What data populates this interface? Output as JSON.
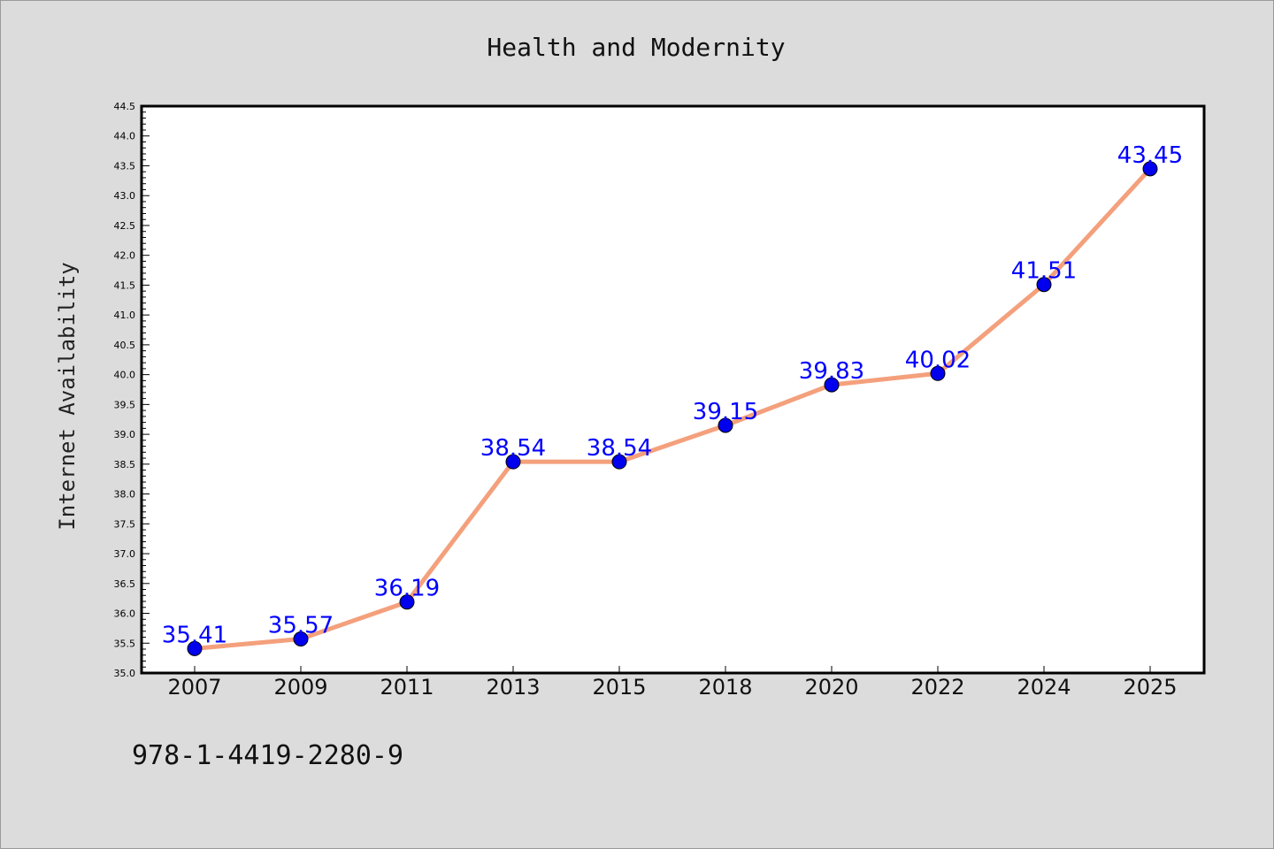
{
  "chart_data": {
    "type": "line",
    "title": "Health and Modernity",
    "xlabel": "",
    "ylabel": "Internet Availability",
    "categories": [
      "2007",
      "2009",
      "2011",
      "2013",
      "2015",
      "2018",
      "2020",
      "2022",
      "2024",
      "2025"
    ],
    "values": [
      35.41,
      35.57,
      36.19,
      38.54,
      38.54,
      39.15,
      39.83,
      40.02,
      41.51,
      43.45
    ],
    "value_labels": [
      "35.41",
      "35.57",
      "36.19",
      "38.54",
      "38.54",
      "39.15",
      "39.83",
      "40.02",
      "41.51",
      "43.45"
    ],
    "ylim": [
      35.0,
      44.5
    ],
    "yticks": [
      "35.0",
      "35.5",
      "36.0",
      "36.5",
      "37.0",
      "37.5",
      "38.0",
      "38.5",
      "39.0",
      "39.5",
      "40.0",
      "40.5",
      "41.0",
      "41.5",
      "42.0",
      "42.5",
      "43.0",
      "43.5",
      "44.0",
      "44.5"
    ],
    "grid": false,
    "legend": "none",
    "colors": {
      "line": "#f4a07c",
      "marker": "#0000ee",
      "label": "#0000ff",
      "background": "#dcdcdc",
      "plot_area": "#ffffff"
    }
  },
  "footer": {
    "isbn": "978-1-4419-2280-9"
  }
}
